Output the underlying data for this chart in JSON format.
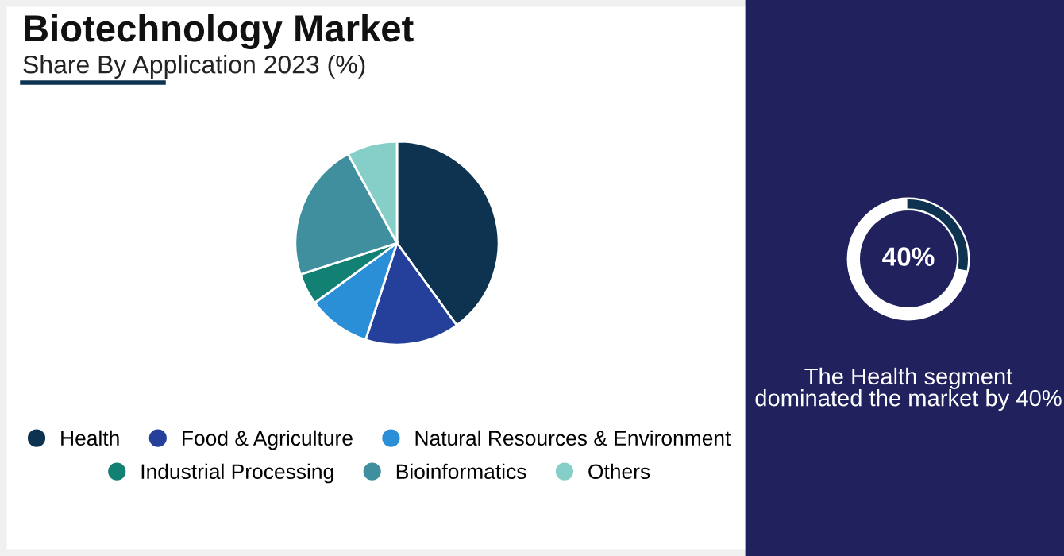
{
  "chart_data": [
    {
      "type": "pie",
      "title": "Biotechnology Market",
      "subtitle": "Share By Application 2023 (%)",
      "legend": "bottom",
      "categories": [
        "Health",
        "Food & Agriculture",
        "Natural Resources & Environment",
        "Industrial Processing",
        "Bioinformatics",
        "Others"
      ],
      "values": [
        40,
        15,
        10,
        5,
        22,
        8
      ],
      "colors": [
        "#0d3350",
        "#25409a",
        "#2a8fd6",
        "#138074",
        "#3f8f9f",
        "#86cfc8"
      ]
    },
    {
      "type": "other",
      "annotations": [
        "40%",
        "The Health segment dominated the market by 40%"
      ]
    }
  ]
}
